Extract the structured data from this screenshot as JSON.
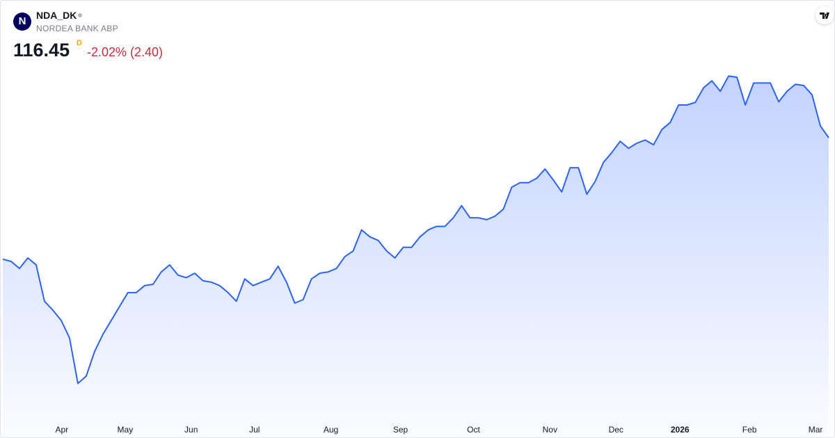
{
  "header": {
    "logo_letter": "N",
    "symbol": "NDA_DK",
    "name": "NORDEA BANK ABP",
    "price": "116.45",
    "interval": "D",
    "change": "-2.02% (2.40)"
  },
  "chart_data": {
    "type": "area",
    "color": "#2962ff",
    "values": [
      97.4,
      97.05,
      95.95,
      97.6,
      96.5,
      90.8,
      89.4,
      87.8,
      85.05,
      77.9,
      79.05,
      82.9,
      85.6,
      87.8,
      90.0,
      92.15,
      92.15,
      93.25,
      93.45,
      95.4,
      96.5,
      94.9,
      94.5,
      95.2,
      94.0,
      93.8,
      93.25,
      92.15,
      90.8,
      94.3,
      93.25,
      93.8,
      94.3,
      96.3,
      93.8,
      90.5,
      91.05,
      94.3,
      95.2,
      95.4,
      95.95,
      97.8,
      98.7,
      102.0,
      100.9,
      100.35,
      98.7,
      97.6,
      99.25,
      99.25,
      100.9,
      102.0,
      102.55,
      102.55,
      103.9,
      105.8,
      103.9,
      103.9,
      103.6,
      104.15,
      105.25,
      108.7,
      109.4,
      109.4,
      110.1,
      111.55,
      109.8,
      107.95,
      111.75,
      111.75,
      107.6,
      109.6,
      112.6,
      114.15,
      115.9,
      114.8,
      115.6,
      116.1,
      115.35,
      117.75,
      118.85,
      121.6,
      121.6,
      122.0,
      124.3,
      125.4,
      123.75,
      126.15,
      125.95,
      121.6,
      125.05,
      125.05,
      125.05,
      122.1,
      123.75,
      124.85,
      124.65,
      123.2,
      118.3,
      116.45
    ],
    "ylim": [
      72.5,
      127.6
    ],
    "xticks": [
      {
        "value": 7.08,
        "label": "Apr"
      },
      {
        "value": 14.67,
        "label": "May"
      },
      {
        "value": 22.58,
        "label": "Jun"
      },
      {
        "value": 30.17,
        "label": "Jul"
      },
      {
        "value": 39.33,
        "label": "Aug"
      },
      {
        "value": 47.67,
        "label": "Sep"
      },
      {
        "value": 56.42,
        "label": "Oct"
      },
      {
        "value": 65.58,
        "label": "Nov"
      },
      {
        "value": 73.5,
        "label": "Dec"
      },
      {
        "value": 81.17,
        "label": "2026"
      },
      {
        "value": 89.5,
        "label": "Feb"
      },
      {
        "value": 97.42,
        "label": "Mar"
      }
    ]
  }
}
